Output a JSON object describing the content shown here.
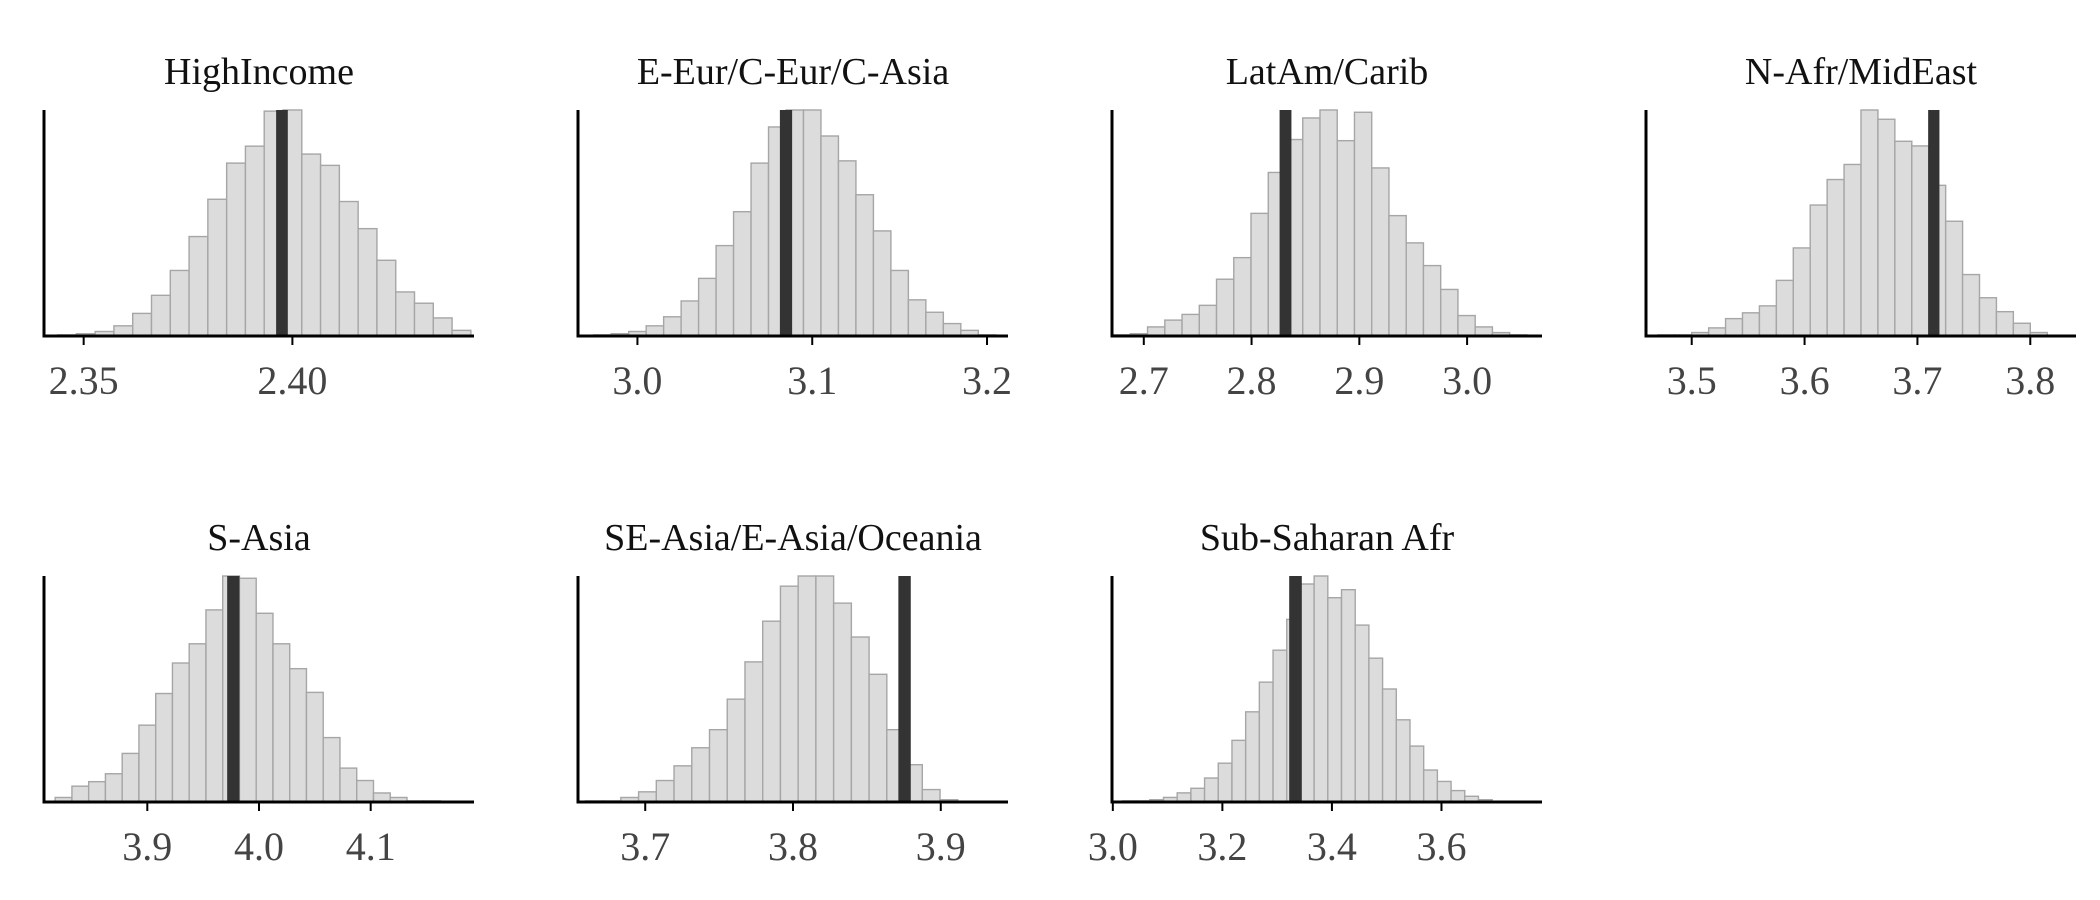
{
  "chart_data": [
    {
      "type": "histogram",
      "title": "HighIncome",
      "xlim": [
        2.3405,
        2.4435
      ],
      "xticks": [
        2.35,
        2.4
      ],
      "xtick_labels": [
        "2.35",
        "2.40"
      ],
      "bins": [
        2.346,
        2.3505,
        2.355,
        2.3595,
        2.364,
        2.3685,
        2.373,
        2.3775,
        2.382,
        2.3865,
        2.391,
        2.3955,
        2.4,
        2.4045,
        2.409,
        2.4135,
        2.418,
        2.4225,
        2.427,
        2.4315,
        2.436,
        2.4405
      ],
      "counts": [
        1,
        2,
        4,
        9,
        20,
        36,
        58,
        88,
        121,
        153,
        168,
        199,
        200,
        161,
        151,
        119,
        95,
        67,
        39,
        29,
        16,
        5
      ],
      "reference": 2.3975,
      "reference_halfwidth": 0.0014
    },
    {
      "type": "histogram",
      "title": "E-Eur/C-Eur/C-Asia",
      "xlim": [
        2.966,
        3.212
      ],
      "xticks": [
        3.0,
        3.1,
        3.2
      ],
      "xtick_labels": [
        "3.0",
        "3.1",
        "3.2"
      ],
      "bins": [
        2.98,
        2.99,
        3.0,
        3.01,
        3.02,
        3.03,
        3.04,
        3.05,
        3.06,
        3.07,
        3.08,
        3.09,
        3.1,
        3.11,
        3.12,
        3.13,
        3.14,
        3.15,
        3.16,
        3.17,
        3.18,
        3.19,
        3.2
      ],
      "counts": [
        1,
        2,
        4,
        9,
        17,
        31,
        51,
        80,
        110,
        153,
        185,
        200,
        200,
        177,
        155,
        125,
        93,
        58,
        32,
        21,
        11,
        5,
        1
      ],
      "reference": 3.085,
      "reference_halfwidth": 0.0035
    },
    {
      "type": "histogram",
      "title": "LatAm/Carib",
      "xlim": [
        2.6705,
        3.0695
      ],
      "xticks": [
        2.7,
        2.8,
        2.9,
        3.0
      ],
      "xtick_labels": [
        "2.7",
        "2.8",
        "2.9",
        "3.0"
      ],
      "bins": [
        2.6795,
        2.6955,
        2.7115,
        2.7275,
        2.7435,
        2.7595,
        2.7755,
        2.7915,
        2.8075,
        2.8235,
        2.8395,
        2.8555,
        2.8715,
        2.8875,
        2.9035,
        2.9195,
        2.9355,
        2.9515,
        2.9675,
        2.9835,
        2.9995,
        3.0155,
        3.0315,
        3.0475
      ],
      "counts": [
        1,
        2,
        8,
        14,
        19,
        27,
        50,
        69,
        108,
        144,
        173,
        192,
        199,
        172,
        197,
        148,
        106,
        82,
        62,
        41,
        18,
        8,
        3,
        1
      ],
      "reference": 2.8315,
      "reference_halfwidth": 0.0055
    },
    {
      "type": "histogram",
      "title": "N-Afr/MidEast",
      "xlim": [
        3.4595,
        3.8405
      ],
      "xticks": [
        3.5,
        3.6,
        3.7,
        3.8
      ],
      "xtick_labels": [
        "3.5",
        "3.6",
        "3.7",
        "3.8"
      ],
      "bins": [
        3.4775,
        3.4925,
        3.5075,
        3.5225,
        3.5375,
        3.5525,
        3.5675,
        3.5825,
        3.5975,
        3.6125,
        3.6275,
        3.6425,
        3.6575,
        3.6725,
        3.6875,
        3.7025,
        3.7175,
        3.7325,
        3.7475,
        3.7625,
        3.7775,
        3.7925,
        3.8075
      ],
      "counts": [
        1,
        1,
        3,
        7,
        15,
        20,
        26,
        48,
        76,
        113,
        135,
        148,
        195,
        187,
        168,
        164,
        130,
        99,
        53,
        33,
        21,
        11,
        3
      ],
      "reference": 3.7145,
      "reference_halfwidth": 0.005
    },
    {
      "type": "histogram",
      "title": "S-Asia",
      "xlim": [
        3.8075,
        4.1925
      ],
      "xticks": [
        3.9,
        4.0,
        4.1
      ],
      "xtick_labels": [
        "3.9",
        "4.0",
        "4.1"
      ],
      "bins": [
        3.825,
        3.84,
        3.855,
        3.87,
        3.885,
        3.9,
        3.915,
        3.93,
        3.945,
        3.96,
        3.975,
        3.99,
        4.005,
        4.02,
        4.035,
        4.05,
        4.065,
        4.08,
        4.095,
        4.11,
        4.125,
        4.14,
        4.155
      ],
      "counts": [
        4,
        14,
        18,
        25,
        43,
        68,
        96,
        123,
        140,
        170,
        200,
        198,
        167,
        140,
        118,
        97,
        57,
        30,
        19,
        8,
        4,
        1,
        1
      ],
      "reference": 3.977,
      "reference_halfwidth": 0.0055
    },
    {
      "type": "histogram",
      "title": "SE-Asia/E-Asia/Oceania",
      "xlim": [
        3.6545,
        3.9455
      ],
      "xticks": [
        3.7,
        3.8,
        3.9
      ],
      "xtick_labels": [
        "3.7",
        "3.8",
        "3.9"
      ],
      "bins": [
        3.6655,
        3.6775,
        3.6895,
        3.7015,
        3.7135,
        3.7255,
        3.7375,
        3.7495,
        3.7615,
        3.7735,
        3.7855,
        3.7975,
        3.8095,
        3.8215,
        3.8335,
        3.8455,
        3.8575,
        3.8695,
        3.8815,
        3.8935,
        3.9055
      ],
      "counts": [
        1,
        1,
        4,
        9,
        19,
        32,
        48,
        64,
        91,
        124,
        160,
        191,
        200,
        200,
        176,
        146,
        113,
        64,
        33,
        11,
        2
      ],
      "reference": 3.8755,
      "reference_halfwidth": 0.0042
    },
    {
      "type": "histogram",
      "title": "Sub-Saharan Afr",
      "xlim": [
        2.9985,
        3.7835
      ],
      "xticks": [
        3.0,
        3.2,
        3.4,
        3.6
      ],
      "xtick_labels": [
        "3.0",
        "3.2",
        "3.4",
        "3.6"
      ],
      "bins": [
        3.03,
        3.055,
        3.08,
        3.105,
        3.13,
        3.155,
        3.18,
        3.205,
        3.23,
        3.255,
        3.28,
        3.305,
        3.33,
        3.355,
        3.38,
        3.405,
        3.43,
        3.455,
        3.48,
        3.505,
        3.53,
        3.555,
        3.58,
        3.605,
        3.63,
        3.655,
        3.68
      ],
      "counts": [
        1,
        1,
        2,
        4,
        8,
        12,
        21,
        34,
        54,
        79,
        105,
        133,
        160,
        191,
        198,
        179,
        186,
        155,
        126,
        99,
        72,
        49,
        28,
        18,
        10,
        5,
        2
      ],
      "reference": 3.3335,
      "reference_halfwidth": 0.0115
    }
  ]
}
